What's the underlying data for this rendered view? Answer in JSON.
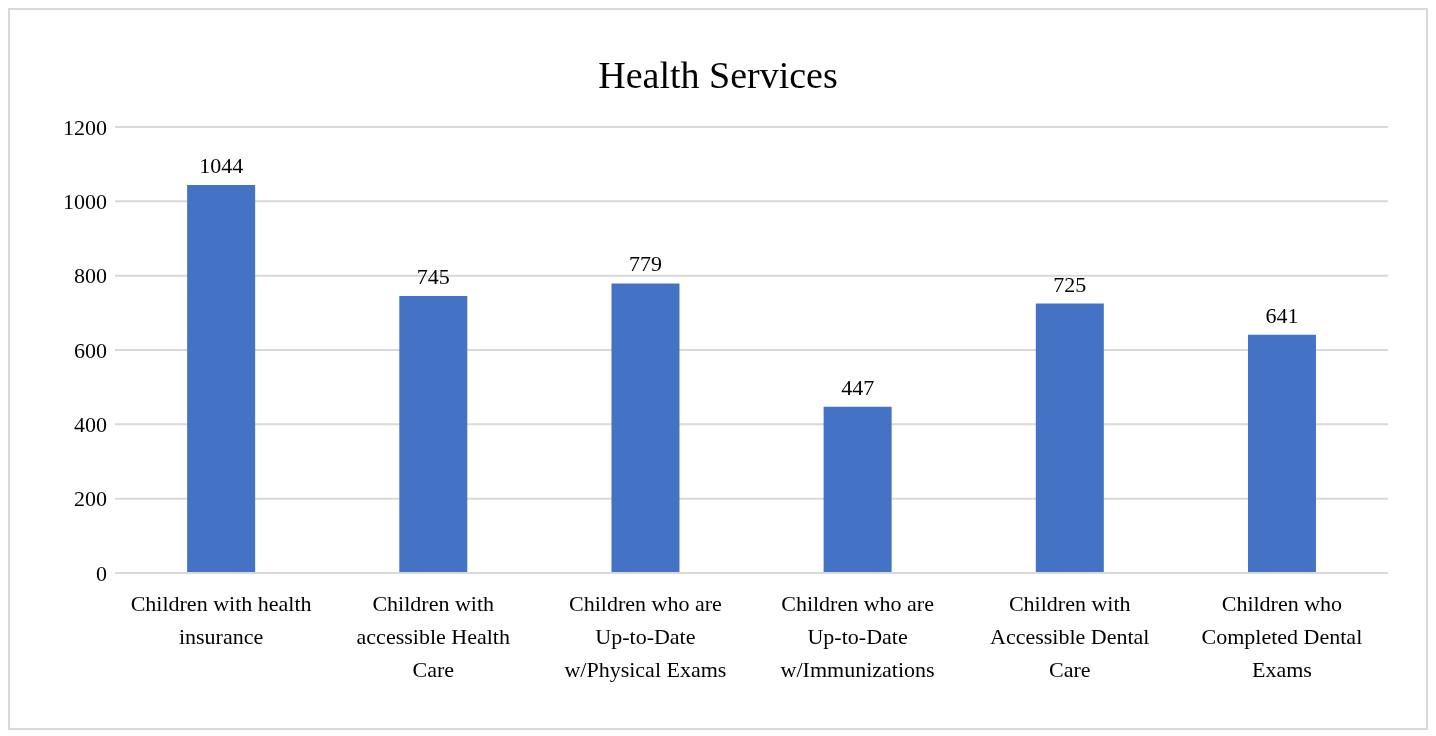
{
  "chart_data": {
    "type": "bar",
    "title": "Health Services",
    "categories": [
      "Children with health insurance",
      "Children with accessible Health Care",
      "Children who are Up-to-Date w/Physical Exams",
      "Children who are Up-to-Date w/Immunizations",
      "Children with Accessible Dental Care",
      "Children who Completed Dental Exams"
    ],
    "values": [
      1044,
      745,
      779,
      447,
      725,
      641
    ],
    "color": "#4472c4",
    "ylim": [
      0,
      1200
    ],
    "yticks": [
      0,
      200,
      400,
      600,
      800,
      1000,
      1200
    ],
    "grid": "y",
    "data_labels": true
  }
}
